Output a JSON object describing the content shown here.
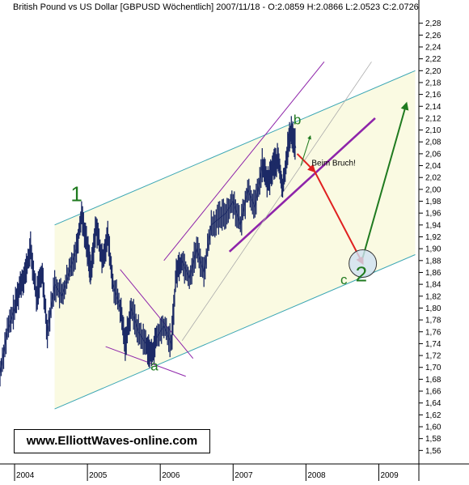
{
  "chart_data": {
    "type": "line",
    "title": "British Pound vs US Dollar [GBPUSD  Wöchentlich] 2007/11/18 - O:2.0859 H:2.0866 L:2.0523 C:2.0726",
    "instrument": "British Pound vs US Dollar",
    "symbol": "GBPUSD",
    "timeframe": "Wöchentlich",
    "last_bar": {
      "date": "2007/11/18",
      "open": 2.0859,
      "high": 2.0866,
      "low": 2.0523,
      "close": 2.0726
    },
    "xlabel": "",
    "ylabel": "",
    "xlim": [
      2003.8,
      2009.55
    ],
    "ylim": [
      1.555,
      2.285
    ],
    "x_ticks": [
      2004,
      2005,
      2006,
      2007,
      2008,
      2009
    ],
    "x_tick_labels": [
      "2004",
      "2005",
      "2006",
      "2007",
      "2008",
      "2009"
    ],
    "y_ticks": [
      1.56,
      1.58,
      1.6,
      1.62,
      1.64,
      1.66,
      1.68,
      1.7,
      1.72,
      1.74,
      1.76,
      1.78,
      1.8,
      1.82,
      1.84,
      1.86,
      1.88,
      1.9,
      1.92,
      1.94,
      1.96,
      1.98,
      2.0,
      2.02,
      2.04,
      2.06,
      2.08,
      2.1,
      2.12,
      2.14,
      2.16,
      2.18,
      2.2,
      2.22,
      2.24,
      2.26,
      2.28
    ],
    "y_tick_labels": [
      "1,56",
      "1,58",
      "1,60",
      "1,62",
      "1,64",
      "1,66",
      "1,68",
      "1,70",
      "1,72",
      "1,74",
      "1,76",
      "1,78",
      "1,80",
      "1,82",
      "1,84",
      "1,86",
      "1,88",
      "1,90",
      "1,92",
      "1,94",
      "1,96",
      "1,98",
      "2,00",
      "2,02",
      "2,04",
      "2,06",
      "2,08",
      "2,10",
      "2,12",
      "2,14",
      "2,16",
      "2,18",
      "2,20",
      "2,22",
      "2,24",
      "2,26",
      "2,28"
    ],
    "grid": false,
    "price_path": [
      [
        2003.8,
        1.69
      ],
      [
        2003.9,
        1.76
      ],
      [
        2004.0,
        1.8
      ],
      [
        2004.08,
        1.84
      ],
      [
        2004.15,
        1.86
      ],
      [
        2004.22,
        1.9
      ],
      [
        2004.3,
        1.82
      ],
      [
        2004.38,
        1.86
      ],
      [
        2004.45,
        1.76
      ],
      [
        2004.55,
        1.84
      ],
      [
        2004.65,
        1.82
      ],
      [
        2004.75,
        1.86
      ],
      [
        2004.85,
        1.9
      ],
      [
        2004.92,
        1.96
      ],
      [
        2005.0,
        1.9
      ],
      [
        2005.05,
        1.86
      ],
      [
        2005.12,
        1.94
      ],
      [
        2005.2,
        1.88
      ],
      [
        2005.28,
        1.92
      ],
      [
        2005.35,
        1.84
      ],
      [
        2005.45,
        1.8
      ],
      [
        2005.52,
        1.74
      ],
      [
        2005.6,
        1.8
      ],
      [
        2005.7,
        1.76
      ],
      [
        2005.8,
        1.74
      ],
      [
        2005.88,
        1.72
      ],
      [
        2005.95,
        1.75
      ],
      [
        2006.05,
        1.77
      ],
      [
        2006.15,
        1.74
      ],
      [
        2006.22,
        1.86
      ],
      [
        2006.3,
        1.88
      ],
      [
        2006.4,
        1.85
      ],
      [
        2006.5,
        1.9
      ],
      [
        2006.6,
        1.86
      ],
      [
        2006.7,
        1.94
      ],
      [
        2006.8,
        1.95
      ],
      [
        2006.9,
        1.96
      ],
      [
        2007.0,
        1.98
      ],
      [
        2007.1,
        1.94
      ],
      [
        2007.2,
        2.0
      ],
      [
        2007.3,
        1.97
      ],
      [
        2007.4,
        2.04
      ],
      [
        2007.48,
        2.01
      ],
      [
        2007.55,
        2.04
      ],
      [
        2007.62,
        2.05
      ],
      [
        2007.68,
        2.0
      ],
      [
        2007.75,
        2.07
      ],
      [
        2007.8,
        2.1
      ],
      [
        2007.86,
        2.07
      ]
    ],
    "trend_channel": {
      "lower": {
        "start": [
          2004.55,
          1.63
        ],
        "end": [
          2009.5,
          1.89
        ]
      },
      "upper": {
        "start": [
          2004.55,
          1.94
        ],
        "end": [
          2009.5,
          2.2
        ]
      },
      "fill": "#fafae2",
      "color": "#3aa6b4"
    },
    "annotations": [
      {
        "label": "1",
        "x": 2004.85,
        "y": 1.98
      },
      {
        "label": "a",
        "x": 2005.92,
        "y": 1.695
      },
      {
        "label": "b",
        "x": 2007.88,
        "y": 2.11
      },
      {
        "label": "c",
        "x": 2008.52,
        "y": 1.84
      },
      {
        "label": "2",
        "x": 2008.76,
        "y": 1.845
      },
      {
        "label": "Beim Bruch!",
        "x": 2008.38,
        "y": 2.04
      }
    ],
    "arrows": [
      {
        "from": [
          2007.88,
          2.06
        ],
        "to": [
          2008.12,
          2.03
        ],
        "color": "#e02020"
      },
      {
        "from": [
          2008.12,
          2.03
        ],
        "to": [
          2008.78,
          1.875
        ],
        "color": "#e02020"
      },
      {
        "from": [
          2007.93,
          2.04
        ],
        "to": [
          2008.06,
          2.09
        ],
        "color": "#1f7a1f"
      },
      {
        "from": [
          2008.78,
          1.885
        ],
        "to": [
          2009.38,
          2.145
        ],
        "color": "#1f7a1f"
      }
    ],
    "colors": {
      "price": "#1c2a66",
      "channel": "#3aa6b4",
      "purple": "#8e24aa",
      "gray": "#aaaaaa",
      "red": "#e02020",
      "green": "#1f7a1f",
      "circle_fill": "#cfe1f2"
    }
  },
  "watermark": "www.ElliottWaves-online.com"
}
